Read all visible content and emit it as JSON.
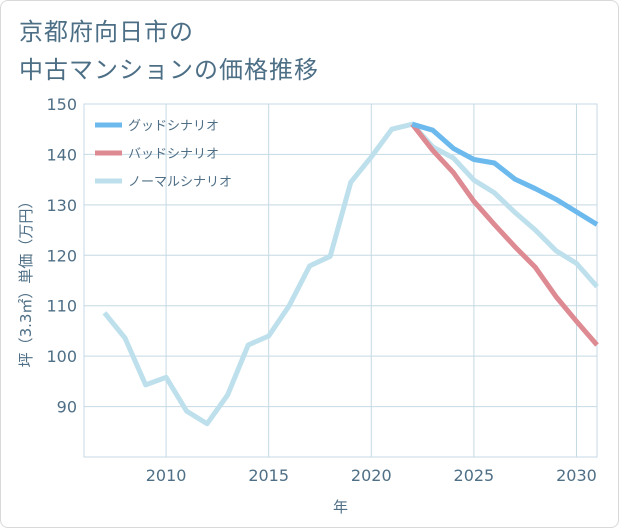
{
  "title_lines": [
    "京都府向日市の",
    "中古マンションの価格推移"
  ],
  "chart_data": {
    "type": "line",
    "xlabel": "年",
    "ylabel": "坪（3.3㎡）単価（万円）",
    "xlim": [
      2006,
      2031
    ],
    "ylim": [
      80,
      150
    ],
    "xticks": [
      2010,
      2015,
      2020,
      2025,
      2030
    ],
    "yticks": [
      90,
      100,
      110,
      120,
      130,
      140,
      150
    ],
    "grid": true,
    "legend_position": "top-left",
    "series": [
      {
        "name": "グッドシナリオ",
        "color": "#6cb9ee",
        "x": [
          2022,
          2023,
          2024,
          2025,
          2026,
          2027,
          2028,
          2029,
          2030,
          2031
        ],
        "y": [
          146,
          144.8,
          141.2,
          139,
          138.3,
          135.1,
          133.2,
          131.1,
          128.6,
          126.1
        ]
      },
      {
        "name": "バッドシナリオ",
        "color": "#de8a92",
        "x": [
          2022,
          2023,
          2024,
          2025,
          2026,
          2027,
          2028,
          2029,
          2030,
          2031
        ],
        "y": [
          146,
          140.8,
          136.4,
          130.7,
          126.1,
          121.7,
          117.6,
          111.8,
          106.9,
          102.2
        ]
      },
      {
        "name": "ノーマルシナリオ",
        "color": "#bde0ec",
        "x": [
          2007,
          2008,
          2009,
          2010,
          2011,
          2012,
          2013,
          2014,
          2015,
          2016,
          2017,
          2018,
          2019,
          2020,
          2021,
          2022,
          2023,
          2024,
          2025,
          2026,
          2027,
          2028,
          2029,
          2030,
          2031
        ],
        "y": [
          108.6,
          103.6,
          94.3,
          95.8,
          89.1,
          86.6,
          92.3,
          102.2,
          104,
          110,
          117.9,
          119.8,
          134.5,
          139.5,
          145,
          146,
          141.5,
          139.3,
          134.9,
          132.4,
          128.5,
          125,
          120.9,
          118.4,
          113.8
        ]
      }
    ]
  }
}
